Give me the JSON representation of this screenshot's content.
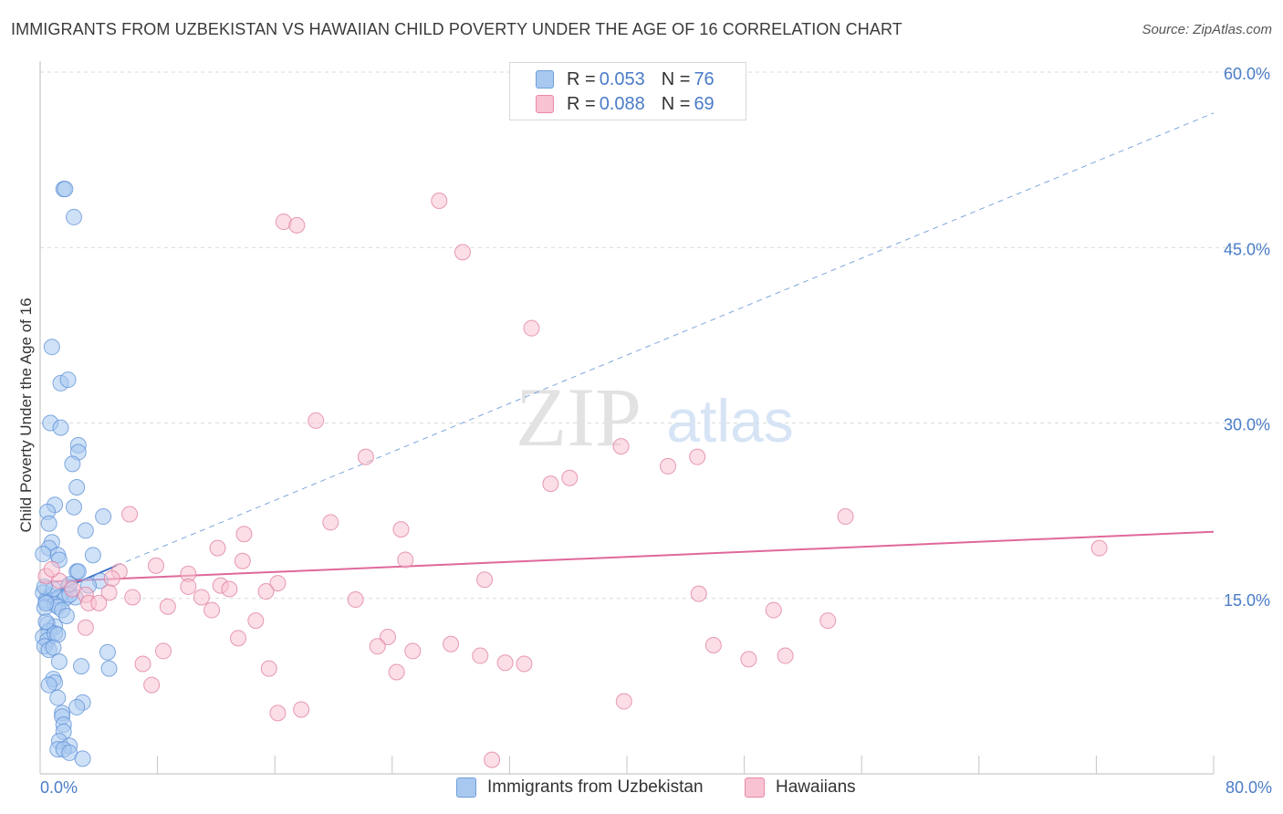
{
  "title": "IMMIGRANTS FROM UZBEKISTAN VS HAWAIIAN CHILD POVERTY UNDER THE AGE OF 16 CORRELATION CHART",
  "source": "Source: ZipAtlas.com",
  "watermark": {
    "zip": "ZIP",
    "atlas": "atlas"
  },
  "legend": {
    "rows": [
      {
        "r_label": "R =",
        "r_value": "0.053",
        "n_label": "N =",
        "n_value": "76",
        "color": "#a8c8f0",
        "border": "#6f9fd8"
      },
      {
        "r_label": "R =",
        "r_value": "0.088",
        "n_label": "N =",
        "n_value": "69",
        "color": "#f8c2d2",
        "border": "#e889a6"
      }
    ]
  },
  "bottom_legend": [
    {
      "label": "Immigrants from Uzbekistan",
      "color": "#a8c8f0",
      "border": "#6f9fd8"
    },
    {
      "label": "Hawaiians",
      "color": "#f8c2d2",
      "border": "#e889a6"
    }
  ],
  "chart_data": {
    "type": "scatter",
    "title": "IMMIGRANTS FROM UZBEKISTAN VS HAWAIIAN CHILD POVERTY UNDER THE AGE OF 16 CORRELATION CHART",
    "xlabel": "",
    "ylabel": "Child Poverty Under the Age of 16",
    "xlim": [
      0,
      80
    ],
    "ylim": [
      0,
      60
    ],
    "x_tick_labels": [
      {
        "value": 0,
        "label": "0.0%"
      },
      {
        "value": 80,
        "label": "80.0%"
      }
    ],
    "y_tick_labels": [
      {
        "value": 15,
        "label": "15.0%"
      },
      {
        "value": 30,
        "label": "30.0%"
      },
      {
        "value": 45,
        "label": "45.0%"
      },
      {
        "value": 60,
        "label": "60.0%"
      }
    ],
    "series": [
      {
        "name": "Immigrants from Uzbekistan",
        "color": "#a8c8f0",
        "stroke": "#5b8fd6",
        "points": [
          [
            1.6,
            50.0
          ],
          [
            1.7,
            50.0
          ],
          [
            2.3,
            47.6
          ],
          [
            0.8,
            36.5
          ],
          [
            1.4,
            33.4
          ],
          [
            1.9,
            33.7
          ],
          [
            0.7,
            30.0
          ],
          [
            1.4,
            29.6
          ],
          [
            2.6,
            28.1
          ],
          [
            2.6,
            27.5
          ],
          [
            2.2,
            26.5
          ],
          [
            2.5,
            24.5
          ],
          [
            1.0,
            23.0
          ],
          [
            2.3,
            22.8
          ],
          [
            0.5,
            22.4
          ],
          [
            4.3,
            22.0
          ],
          [
            0.6,
            21.4
          ],
          [
            3.1,
            20.8
          ],
          [
            0.8,
            19.8
          ],
          [
            0.6,
            19.3
          ],
          [
            1.2,
            18.7
          ],
          [
            3.6,
            18.7
          ],
          [
            1.3,
            18.3
          ],
          [
            0.2,
            18.8
          ],
          [
            2.5,
            17.3
          ],
          [
            2.6,
            17.3
          ],
          [
            4.1,
            16.5
          ],
          [
            1.9,
            16.0
          ],
          [
            3.3,
            16.1
          ],
          [
            0.2,
            15.5
          ],
          [
            0.7,
            15.2
          ],
          [
            1.3,
            15.1
          ],
          [
            1.7,
            15.0
          ],
          [
            2.4,
            15.1
          ],
          [
            0.4,
            14.8
          ],
          [
            1.0,
            14.5
          ],
          [
            1.2,
            14.3
          ],
          [
            1.5,
            14.0
          ],
          [
            0.3,
            14.2
          ],
          [
            2.0,
            15.3
          ],
          [
            0.5,
            12.8
          ],
          [
            1.0,
            12.6
          ],
          [
            0.6,
            12.2
          ],
          [
            0.2,
            11.7
          ],
          [
            0.5,
            11.4
          ],
          [
            1.0,
            12.0
          ],
          [
            1.2,
            11.9
          ],
          [
            0.3,
            10.9
          ],
          [
            0.6,
            10.6
          ],
          [
            0.9,
            10.8
          ],
          [
            4.6,
            10.4
          ],
          [
            1.3,
            9.6
          ],
          [
            2.8,
            9.2
          ],
          [
            4.7,
            9.0
          ],
          [
            0.9,
            8.1
          ],
          [
            1.0,
            7.8
          ],
          [
            0.6,
            7.6
          ],
          [
            1.2,
            6.5
          ],
          [
            2.9,
            6.1
          ],
          [
            2.5,
            5.7
          ],
          [
            1.5,
            5.2
          ],
          [
            1.5,
            4.9
          ],
          [
            1.6,
            4.2
          ],
          [
            1.6,
            3.6
          ],
          [
            1.3,
            2.8
          ],
          [
            2.0,
            2.4
          ],
          [
            1.2,
            2.1
          ],
          [
            1.6,
            2.1
          ],
          [
            2.0,
            1.8
          ],
          [
            2.9,
            1.3
          ],
          [
            0.4,
            14.6
          ],
          [
            0.9,
            15.8
          ],
          [
            0.4,
            13.0
          ],
          [
            1.8,
            13.5
          ],
          [
            0.3,
            16.0
          ],
          [
            2.0,
            16.2
          ]
        ]
      },
      {
        "name": "Hawaiians",
        "color": "#f8c2d2",
        "stroke": "#e07b9c",
        "points": [
          [
            27.2,
            49.0
          ],
          [
            16.6,
            47.2
          ],
          [
            17.5,
            46.9
          ],
          [
            28.8,
            44.6
          ],
          [
            33.5,
            38.1
          ],
          [
            18.8,
            30.2
          ],
          [
            22.2,
            27.1
          ],
          [
            39.6,
            28.0
          ],
          [
            42.8,
            26.3
          ],
          [
            44.8,
            27.1
          ],
          [
            36.1,
            25.3
          ],
          [
            34.8,
            24.8
          ],
          [
            6.1,
            22.2
          ],
          [
            19.8,
            21.5
          ],
          [
            24.6,
            20.9
          ],
          [
            13.9,
            20.5
          ],
          [
            54.9,
            22.0
          ],
          [
            72.2,
            19.3
          ],
          [
            12.1,
            19.3
          ],
          [
            13.8,
            18.2
          ],
          [
            24.9,
            18.3
          ],
          [
            7.9,
            17.8
          ],
          [
            10.1,
            17.1
          ],
          [
            5.4,
            17.3
          ],
          [
            4.9,
            16.7
          ],
          [
            0.4,
            16.9
          ],
          [
            30.3,
            16.6
          ],
          [
            16.2,
            16.3
          ],
          [
            12.3,
            16.1
          ],
          [
            10.1,
            16.0
          ],
          [
            12.9,
            15.8
          ],
          [
            3.1,
            15.3
          ],
          [
            4.7,
            15.5
          ],
          [
            6.3,
            15.1
          ],
          [
            11.0,
            15.1
          ],
          [
            21.5,
            14.9
          ],
          [
            3.3,
            14.6
          ],
          [
            8.7,
            14.3
          ],
          [
            11.7,
            14.0
          ],
          [
            44.9,
            15.4
          ],
          [
            50.0,
            14.0
          ],
          [
            53.7,
            13.1
          ],
          [
            14.7,
            13.1
          ],
          [
            3.1,
            12.5
          ],
          [
            13.5,
            11.6
          ],
          [
            23.7,
            11.7
          ],
          [
            23.0,
            10.9
          ],
          [
            28.0,
            11.1
          ],
          [
            45.9,
            11.0
          ],
          [
            8.4,
            10.5
          ],
          [
            25.4,
            10.5
          ],
          [
            30.0,
            10.1
          ],
          [
            31.7,
            9.5
          ],
          [
            33.0,
            9.4
          ],
          [
            48.3,
            9.8
          ],
          [
            50.8,
            10.1
          ],
          [
            7.0,
            9.4
          ],
          [
            15.6,
            9.0
          ],
          [
            24.3,
            8.7
          ],
          [
            7.6,
            7.6
          ],
          [
            39.8,
            6.2
          ],
          [
            17.8,
            5.5
          ],
          [
            16.2,
            5.2
          ],
          [
            30.8,
            1.2
          ],
          [
            4.0,
            14.6
          ],
          [
            2.2,
            15.8
          ],
          [
            1.3,
            16.5
          ],
          [
            0.8,
            17.5
          ],
          [
            15.4,
            15.6
          ]
        ]
      }
    ],
    "trendlines": [
      {
        "series": "Immigrants from Uzbekistan",
        "style": "solid",
        "from": [
          0.0,
          15.0
        ],
        "to": [
          5.2,
          17.8
        ],
        "color": "#3f72c8"
      },
      {
        "series": "Immigrants from Uzbekistan",
        "style": "dashed",
        "from": [
          5.2,
          17.8
        ],
        "to": [
          80.0,
          56.5
        ],
        "color": "#7ea6dd"
      },
      {
        "series": "Hawaiians",
        "style": "solid",
        "from": [
          0.0,
          16.4
        ],
        "to": [
          80.0,
          20.7
        ],
        "color": "#e0689a"
      }
    ],
    "grid": "horizontal-dashed",
    "legend_position": "top-center"
  }
}
